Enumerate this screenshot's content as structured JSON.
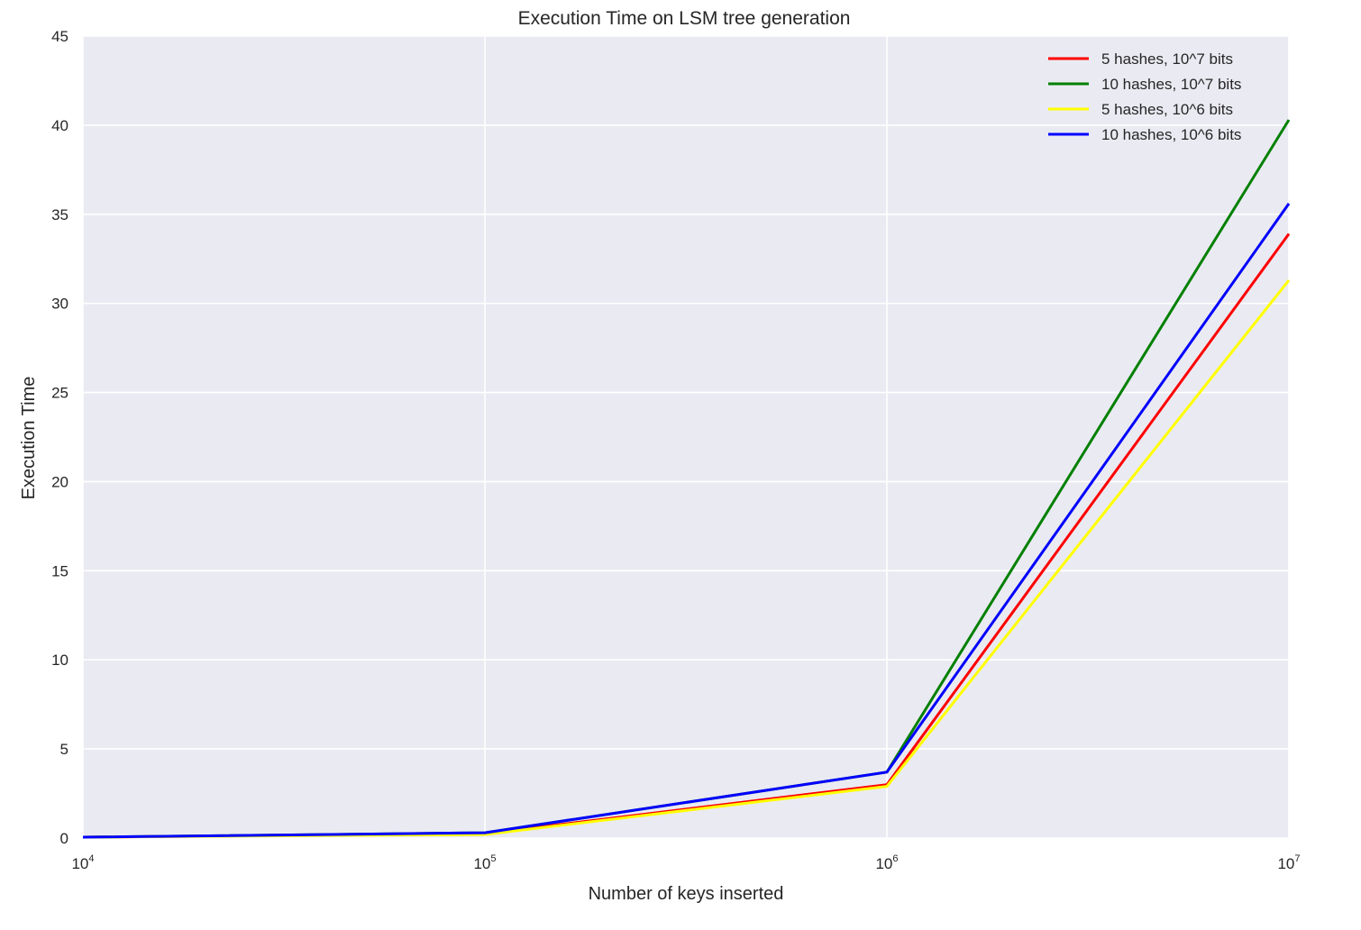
{
  "chart_data": {
    "type": "line",
    "title": "Execution Time on LSM tree generation",
    "xlabel": "Number of keys inserted",
    "ylabel": "Execution Time",
    "x_scale": "log",
    "x": [
      10000,
      100000,
      1000000,
      10000000
    ],
    "x_tick_labels": [
      {
        "base": "10",
        "exp": "4"
      },
      {
        "base": "10",
        "exp": "5"
      },
      {
        "base": "10",
        "exp": "6"
      },
      {
        "base": "10",
        "exp": "7"
      }
    ],
    "xlim": [
      10000,
      10000000
    ],
    "ylim": [
      0,
      45
    ],
    "y_ticks": [
      0,
      5,
      10,
      15,
      20,
      25,
      30,
      35,
      40,
      45
    ],
    "grid": true,
    "legend_position": "top-right",
    "background": "#eaeaf2",
    "series": [
      {
        "name": "5 hashes, 10^7  bits",
        "color": "#ff0000",
        "values": [
          0.05,
          0.25,
          3.0,
          33.9
        ]
      },
      {
        "name": "10 hashes, 10^7  bits",
        "color": "#008000",
        "values": [
          0.05,
          0.3,
          3.7,
          40.3
        ]
      },
      {
        "name": "5 hashes, 10^6  bits",
        "color": "#ffff00",
        "values": [
          0.05,
          0.2,
          2.9,
          31.3
        ]
      },
      {
        "name": "10 hashes, 10^6  bits",
        "color": "#0000ff",
        "values": [
          0.05,
          0.3,
          3.7,
          35.6
        ]
      }
    ]
  }
}
